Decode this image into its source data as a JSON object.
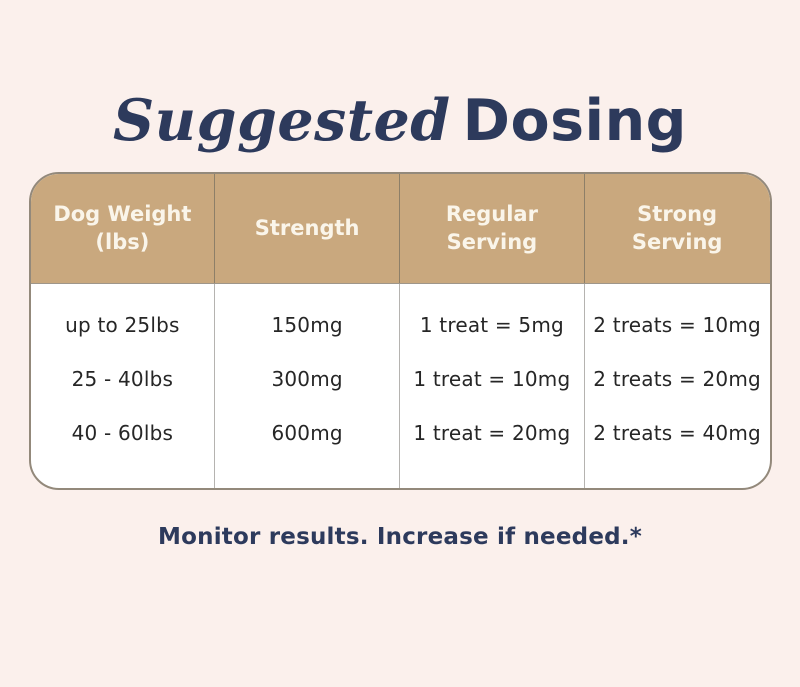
{
  "page": {
    "background_color": "#fbf0ec",
    "navy": "#2d3a5c",
    "tan": "#c9a87e"
  },
  "title": {
    "italic_word": "Suggested",
    "sans_word": "Dosing"
  },
  "chart_data": {
    "type": "table",
    "title": "Suggested Dosing",
    "columns": [
      "Dog Weight\n(lbs)",
      "Strength",
      "Regular\nServing",
      "Strong\nServing"
    ],
    "rows": [
      [
        "up to 25lbs",
        "150mg",
        "1 treat = 5mg",
        "2 treats = 10mg"
      ],
      [
        "25 - 40lbs",
        "300mg",
        "1 treat = 10mg",
        "2 treats = 20mg"
      ],
      [
        "40 - 60lbs",
        "600mg",
        "1 treat = 20mg",
        "2 treats = 40mg"
      ]
    ],
    "footnote": "Monitor results. Increase if needed.*"
  }
}
